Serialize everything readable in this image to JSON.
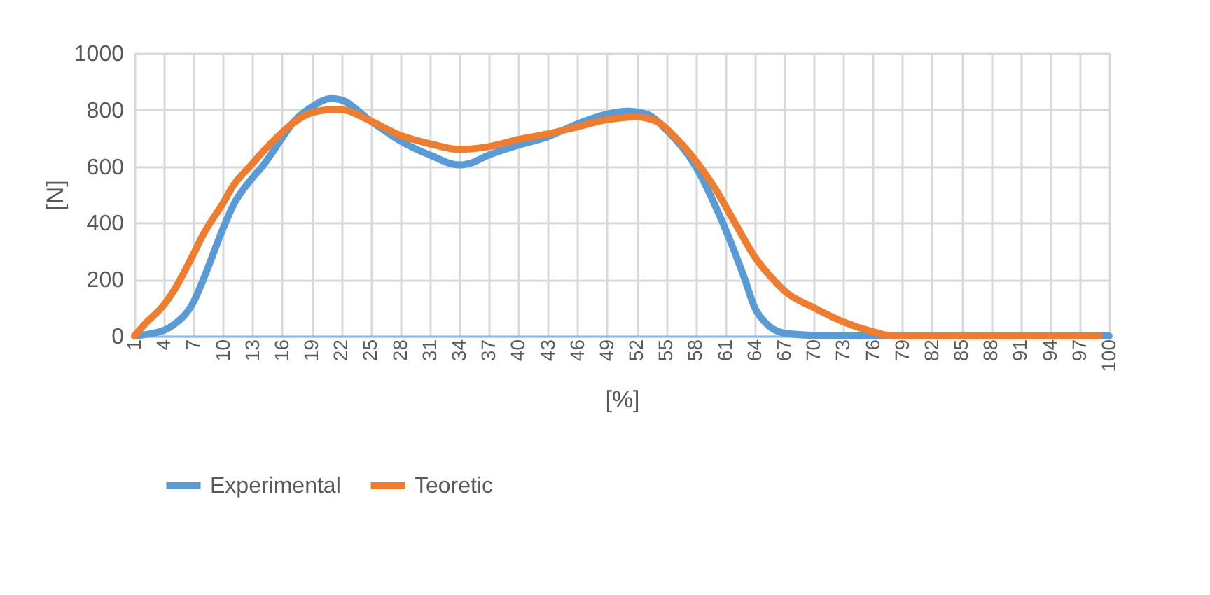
{
  "chart_data": {
    "type": "line",
    "xlabel": "[%]",
    "ylabel": "[N]",
    "xlim": [
      1,
      100
    ],
    "xticks": [
      1,
      4,
      7,
      10,
      13,
      16,
      19,
      22,
      25,
      28,
      31,
      34,
      37,
      40,
      43,
      46,
      49,
      52,
      55,
      58,
      61,
      64,
      67,
      70,
      73,
      76,
      79,
      82,
      85,
      88,
      91,
      94,
      97,
      100
    ],
    "ylim": [
      0,
      1000
    ],
    "yticks": [
      0,
      200,
      400,
      600,
      800,
      1000
    ],
    "grid": true,
    "legend": "bottom",
    "marker": "none",
    "line_style": "solid",
    "series": [
      {
        "name": "Experimental",
        "color": "#5b9bd5",
        "x": [
          1,
          4,
          5,
          7,
          8,
          10,
          11,
          13,
          14,
          16,
          17,
          19,
          21,
          22,
          25,
          28,
          31,
          34,
          35,
          37,
          40,
          43,
          46,
          49,
          51,
          53,
          55,
          58,
          60,
          61,
          63,
          64,
          65,
          67,
          70,
          73,
          100
        ],
        "values": [
          0,
          20,
          40,
          120,
          200,
          380,
          460,
          560,
          600,
          700,
          750,
          810,
          840,
          835,
          760,
          690,
          640,
          605,
          610,
          640,
          675,
          705,
          750,
          785,
          795,
          785,
          730,
          600,
          460,
          380,
          200,
          100,
          50,
          10,
          2,
          0,
          0
        ]
      },
      {
        "name": "Teoretic",
        "color": "#ed7d31",
        "x": [
          1,
          2,
          4,
          5,
          7,
          8,
          10,
          11,
          13,
          14,
          16,
          17,
          19,
          21,
          22,
          25,
          28,
          31,
          34,
          37,
          40,
          43,
          46,
          49,
          52,
          54,
          56,
          58,
          60,
          62,
          64,
          66,
          67,
          70,
          73,
          76,
          78,
          99
        ],
        "values": [
          0,
          40,
          110,
          160,
          290,
          360,
          470,
          530,
          610,
          650,
          720,
          750,
          790,
          800,
          800,
          760,
          710,
          680,
          660,
          670,
          695,
          715,
          740,
          765,
          775,
          760,
          700,
          620,
          520,
          400,
          280,
          195,
          160,
          100,
          50,
          15,
          0,
          0
        ]
      }
    ]
  }
}
